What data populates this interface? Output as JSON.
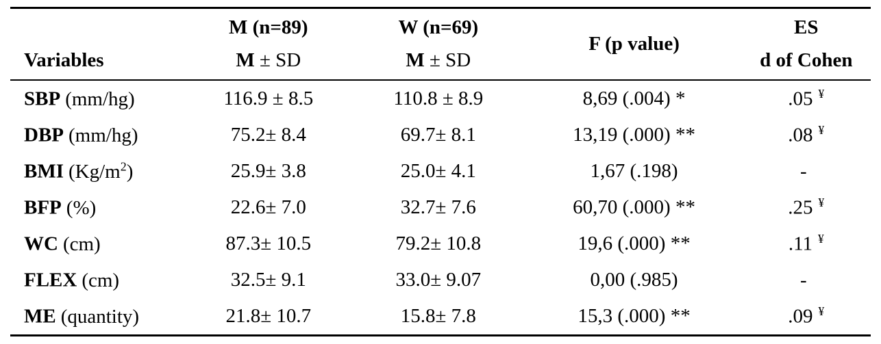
{
  "table": {
    "colors": {
      "text": "#000000",
      "background": "#ffffff",
      "rule": "#000000"
    },
    "header": {
      "variables_label": "Variables",
      "men_group": "M (n=89)",
      "men_stat_m": "M",
      "men_stat_rest": " ± SD",
      "women_group": "W (n=69)",
      "women_stat_m": "M",
      "women_stat_rest": " ± SD",
      "f_label": "F (p value)",
      "es_line1": "ES",
      "es_line2": "d of Cohen"
    },
    "rows": [
      {
        "name": "SBP",
        "unit_pre": "(mm/hg)",
        "unit_sup": "",
        "unit_post": "",
        "m": "116.9 ± 8.5",
        "w": "110.8 ± 8.9",
        "f": "8,69 (.004) *",
        "es": ".05",
        "es_sup": "¥"
      },
      {
        "name": "DBP",
        "unit_pre": "(mm/hg)",
        "unit_sup": "",
        "unit_post": "",
        "m": "75.2± 8.4",
        "w": "69.7± 8.1",
        "f": "13,19 (.000) **",
        "es": ".08",
        "es_sup": "¥"
      },
      {
        "name": "BMI",
        "unit_pre": "(Kg/m",
        "unit_sup": "2",
        "unit_post": ")",
        "m": "25.9± 3.8",
        "w": "25.0± 4.1",
        "f": "1,67 (.198)",
        "es": "-",
        "es_sup": ""
      },
      {
        "name": "BFP",
        "unit_pre": "(%)",
        "unit_sup": "",
        "unit_post": "",
        "m": "22.6± 7.0",
        "w": "32.7± 7.6",
        "f": "60,70 (.000) **",
        "es": ".25",
        "es_sup": "¥"
      },
      {
        "name": "WC",
        "unit_pre": "(cm)",
        "unit_sup": "",
        "unit_post": "",
        "m": "87.3± 10.5",
        "w": "79.2± 10.8",
        "f": "19,6 (.000) **",
        "es": ".11",
        "es_sup": "¥"
      },
      {
        "name": "FLEX",
        "unit_pre": "(cm)",
        "unit_sup": "",
        "unit_post": "",
        "m": "32.5± 9.1",
        "w": "33.0± 9.07",
        "f": "0,00 (.985)",
        "es": "-",
        "es_sup": ""
      },
      {
        "name": "ME",
        "unit_pre": "(quantity)",
        "unit_sup": "",
        "unit_post": "",
        "m": "21.8± 10.7",
        "w": "15.8± 7.8",
        "f": "15,3 (.000) **",
        "es": ".09",
        "es_sup": "¥"
      }
    ]
  }
}
